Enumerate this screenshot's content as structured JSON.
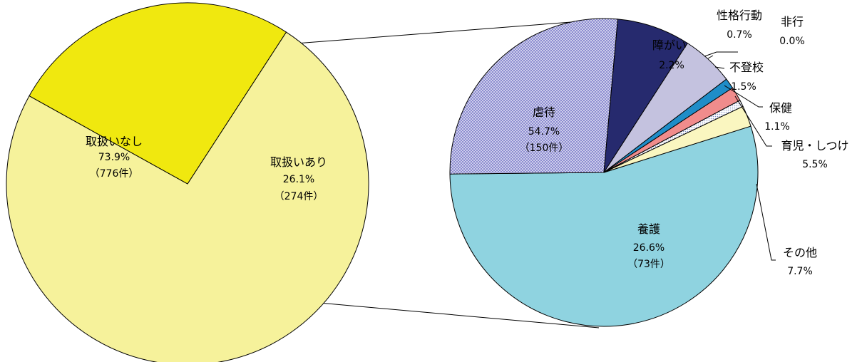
{
  "chart_data": [
    {
      "type": "pie",
      "slices": [
        {
          "label": "取扱いなし",
          "value": 73.9,
          "pct": "73.9%",
          "count": "（776件）",
          "color": "#f6f29b"
        },
        {
          "label": "取扱いあり",
          "value": 26.1,
          "pct": "26.1%",
          "count": "（274件）",
          "color": "#f0e80f"
        }
      ]
    },
    {
      "type": "pie",
      "slices": [
        {
          "label": "虐待",
          "value": 54.7,
          "pct": "54.7%",
          "count": "（150件）",
          "color": "#8fd3e0"
        },
        {
          "label": "養護",
          "value": 26.6,
          "pct": "26.6%",
          "count": "（73件）",
          "color": "#8c8cd1",
          "pattern": "dotted"
        },
        {
          "label": "その他",
          "value": 7.7,
          "pct": "7.7%",
          "color": "#262a6e"
        },
        {
          "label": "育児・しつけ",
          "value": 5.5,
          "pct": "5.5%",
          "color": "#c4c2df"
        },
        {
          "label": "保健",
          "value": 1.1,
          "pct": "1.1%",
          "color": "#1f8dc8"
        },
        {
          "label": "不登校",
          "value": 1.5,
          "pct": "1.5%",
          "color": "#f08c8c"
        },
        {
          "label": "非行",
          "value": 0.0,
          "pct": "0.0%",
          "color": "#ffffff"
        },
        {
          "label": "性格行動",
          "value": 0.7,
          "pct": "0.7%",
          "color": "#dfe6f4",
          "pattern": "dotted"
        },
        {
          "label": "障がい",
          "value": 2.2,
          "pct": "2.2%",
          "color": "#faf6c0"
        }
      ]
    }
  ]
}
